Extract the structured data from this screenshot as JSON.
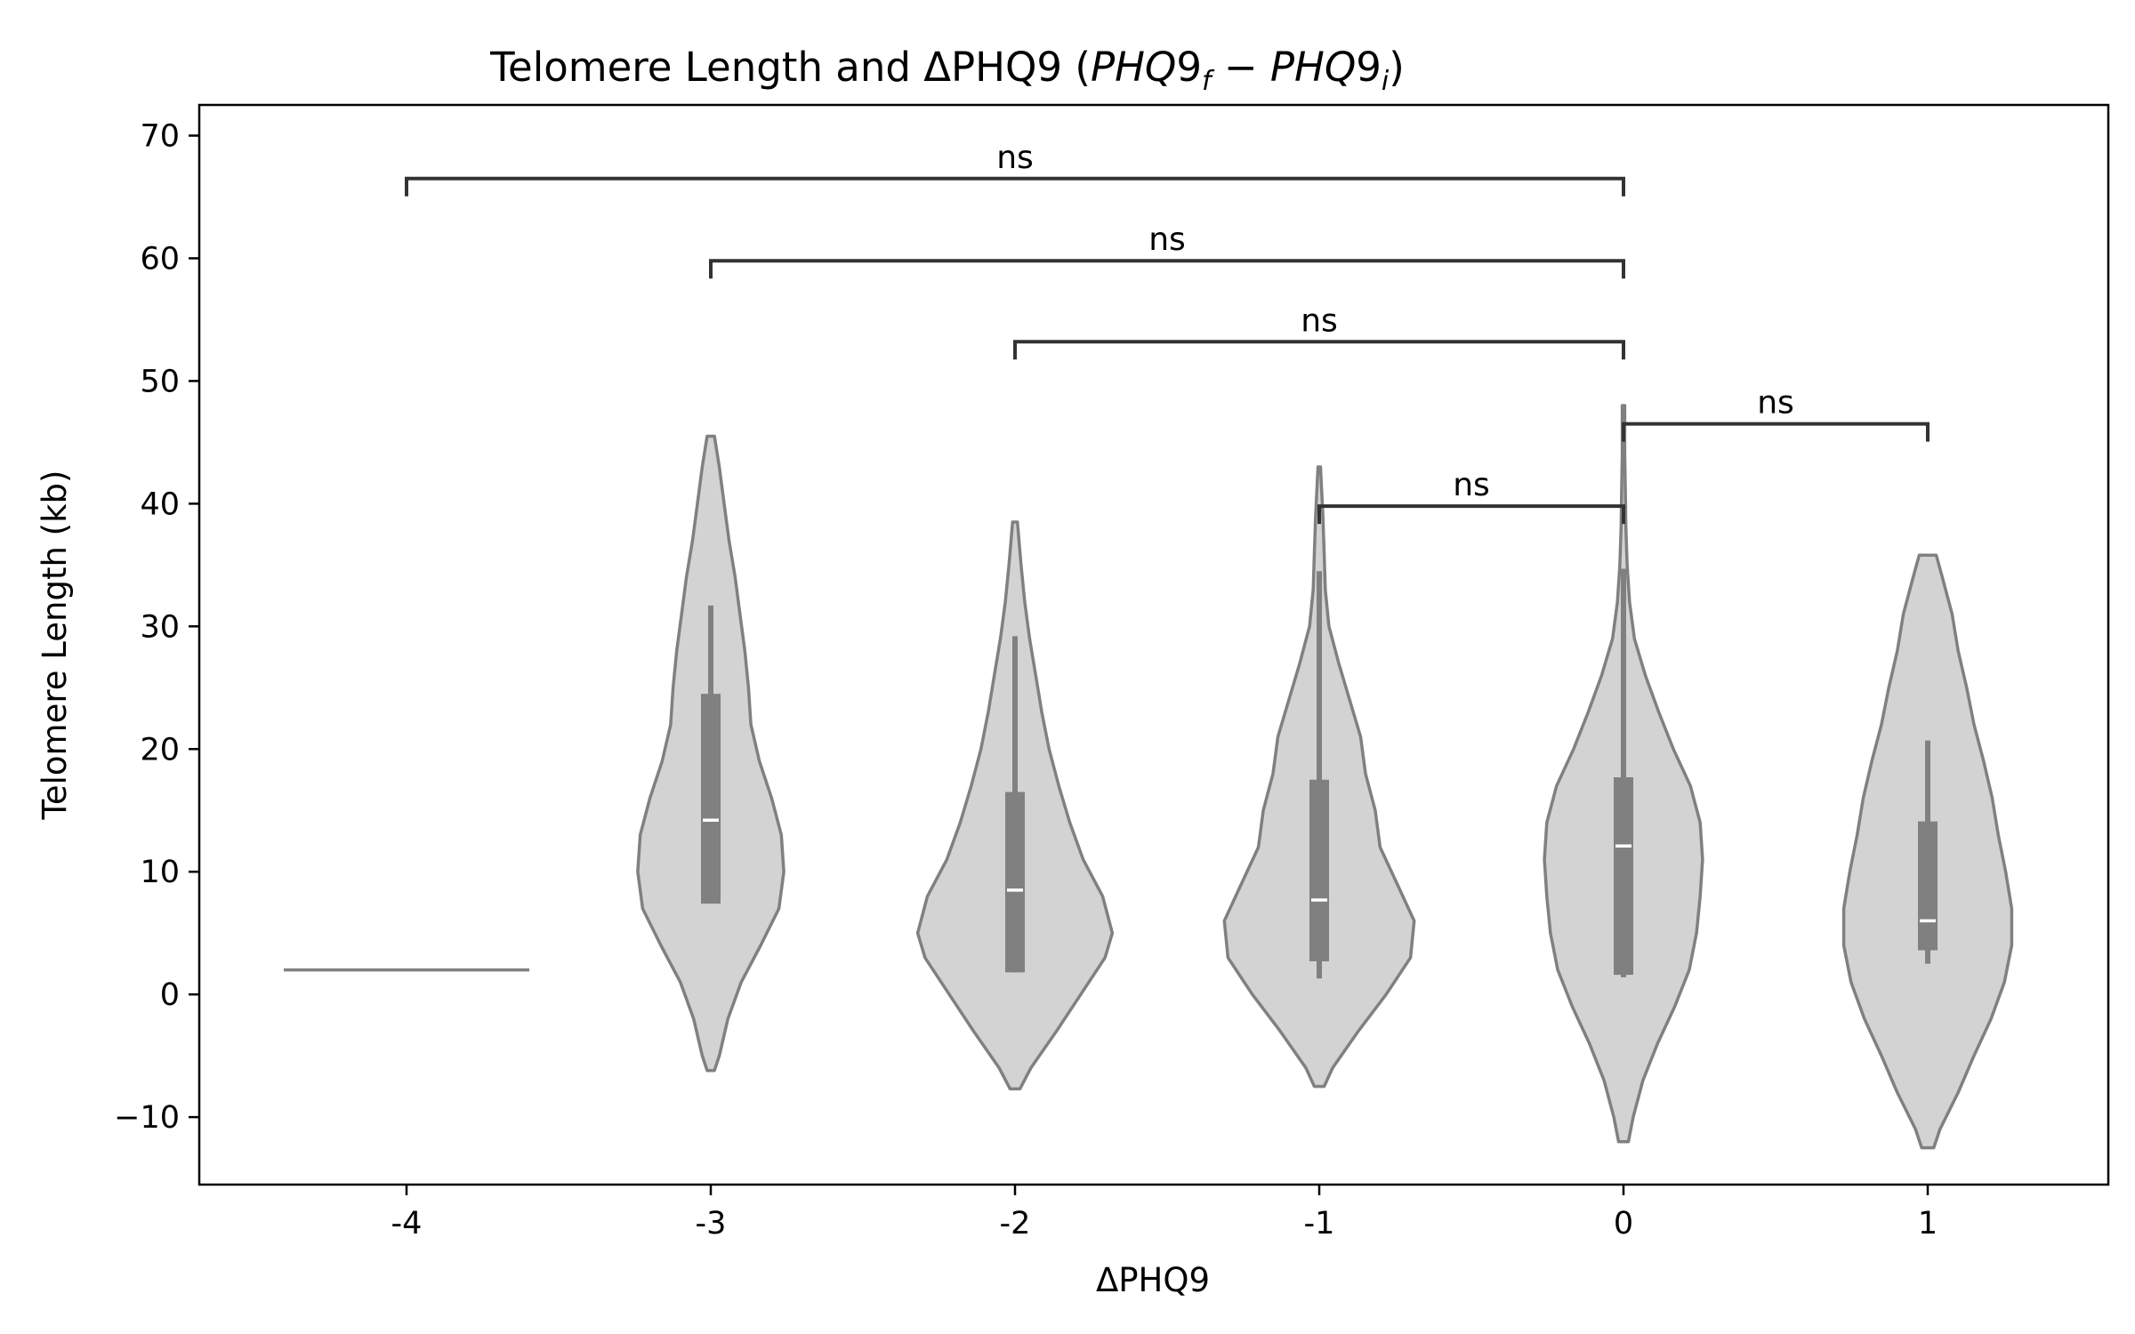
{
  "chart_data": {
    "type": "violin",
    "title": "Telomere Length and ΔPHQ9",
    "title_math": {
      "open": " (",
      "term1": "PHQ",
      "term1_digit": "9",
      "term1_sub": "f",
      "minus": " − ",
      "term2": "PHQ",
      "term2_digit": "9",
      "term2_sub": "i",
      "close": ")"
    },
    "xlabel": "ΔPHQ9",
    "ylabel": "Telomere Length (kb)",
    "ylim": [
      -15.5,
      72.5
    ],
    "yticks": [
      -10,
      0,
      10,
      20,
      30,
      40,
      50,
      60,
      70
    ],
    "ytick_labels": [
      "−10",
      "0",
      "10",
      "20",
      "30",
      "40",
      "50",
      "60",
      "70"
    ],
    "categories": [
      "-4",
      "-3",
      "-2",
      "-1",
      "0",
      "1"
    ],
    "grid": false,
    "colors": {
      "violin_fill": "#d3d3d3",
      "violin_edge": "#808080",
      "box": "#808080",
      "median": "#ffffff",
      "bracket": "#333333"
    },
    "violins": [
      {
        "category": "-4",
        "single_value": 2.0,
        "median": null,
        "q1": null,
        "q3": null,
        "whisker_low": null,
        "whisker_high": null,
        "profile": []
      },
      {
        "category": "-3",
        "median": 14.2,
        "q1": 7.4,
        "q3": 24.5,
        "whisker_low": 7.4,
        "whisker_high": 31.7,
        "profile": [
          [
            -6.2,
            0.03
          ],
          [
            -5,
            0.07
          ],
          [
            -2,
            0.14
          ],
          [
            1,
            0.25
          ],
          [
            4,
            0.41
          ],
          [
            7,
            0.56
          ],
          [
            10,
            0.6
          ],
          [
            13,
            0.58
          ],
          [
            16,
            0.5
          ],
          [
            19,
            0.4
          ],
          [
            22,
            0.33
          ],
          [
            25,
            0.31
          ],
          [
            28,
            0.28
          ],
          [
            31,
            0.24
          ],
          [
            34,
            0.2
          ],
          [
            37,
            0.15
          ],
          [
            40,
            0.11
          ],
          [
            43,
            0.07
          ],
          [
            45.5,
            0.03
          ]
        ]
      },
      {
        "category": "-2",
        "median": 8.5,
        "q1": 1.8,
        "q3": 16.5,
        "whisker_low": 1.8,
        "whisker_high": 29.2,
        "profile": [
          [
            -7.7,
            0.04
          ],
          [
            -6,
            0.13
          ],
          [
            -3,
            0.34
          ],
          [
            0,
            0.54
          ],
          [
            3,
            0.74
          ],
          [
            5,
            0.8
          ],
          [
            8,
            0.72
          ],
          [
            11,
            0.56
          ],
          [
            14,
            0.45
          ],
          [
            17,
            0.36
          ],
          [
            20,
            0.28
          ],
          [
            23,
            0.22
          ],
          [
            26,
            0.17
          ],
          [
            29,
            0.12
          ],
          [
            32,
            0.08
          ],
          [
            35,
            0.05
          ],
          [
            38.5,
            0.02
          ]
        ]
      },
      {
        "category": "-1",
        "median": 7.7,
        "q1": 2.7,
        "q3": 17.5,
        "whisker_low": 1.3,
        "whisker_high": 34.5,
        "profile": [
          [
            -7.5,
            0.04
          ],
          [
            -6,
            0.11
          ],
          [
            -3,
            0.32
          ],
          [
            0,
            0.55
          ],
          [
            3,
            0.75
          ],
          [
            6,
            0.78
          ],
          [
            9,
            0.64
          ],
          [
            12,
            0.5
          ],
          [
            15,
            0.46
          ],
          [
            18,
            0.38
          ],
          [
            21,
            0.34
          ],
          [
            24,
            0.25
          ],
          [
            27,
            0.16
          ],
          [
            30,
            0.08
          ],
          [
            33,
            0.05
          ],
          [
            36,
            0.04
          ],
          [
            39,
            0.03
          ],
          [
            43,
            0.01
          ]
        ]
      },
      {
        "category": "0",
        "median": 12.1,
        "q1": 1.6,
        "q3": 17.7,
        "whisker_low": 1.4,
        "whisker_high": 34.7,
        "profile": [
          [
            -12,
            0.04
          ],
          [
            -10,
            0.08
          ],
          [
            -7,
            0.16
          ],
          [
            -4,
            0.28
          ],
          [
            -1,
            0.42
          ],
          [
            2,
            0.54
          ],
          [
            5,
            0.6
          ],
          [
            8,
            0.63
          ],
          [
            11,
            0.65
          ],
          [
            14,
            0.63
          ],
          [
            17,
            0.55
          ],
          [
            20,
            0.41
          ],
          [
            23,
            0.29
          ],
          [
            26,
            0.18
          ],
          [
            29,
            0.09
          ],
          [
            32,
            0.05
          ],
          [
            35,
            0.03
          ],
          [
            38,
            0.02
          ],
          [
            41,
            0.015
          ],
          [
            44,
            0.01
          ],
          [
            48,
            0.01
          ]
        ]
      },
      {
        "category": "1",
        "median": 6.0,
        "q1": 3.6,
        "q3": 14.1,
        "whisker_low": 2.5,
        "whisker_high": 20.7,
        "profile": [
          [
            -12.5,
            0.05
          ],
          [
            -11,
            0.1
          ],
          [
            -8,
            0.25
          ],
          [
            -5,
            0.38
          ],
          [
            -2,
            0.52
          ],
          [
            1,
            0.63
          ],
          [
            4,
            0.69
          ],
          [
            7,
            0.69
          ],
          [
            10,
            0.64
          ],
          [
            13,
            0.58
          ],
          [
            16,
            0.53
          ],
          [
            19,
            0.46
          ],
          [
            22,
            0.38
          ],
          [
            25,
            0.32
          ],
          [
            28,
            0.25
          ],
          [
            31,
            0.2
          ],
          [
            34,
            0.12
          ],
          [
            35.8,
            0.07
          ]
        ]
      }
    ],
    "annotations": [
      {
        "from": "-4",
        "to": "0",
        "y": 66.5,
        "label": "ns"
      },
      {
        "from": "-3",
        "to": "0",
        "y": 59.8,
        "label": "ns"
      },
      {
        "from": "-2",
        "to": "0",
        "y": 53.2,
        "label": "ns"
      },
      {
        "from": "0",
        "to": "1",
        "y": 46.5,
        "label": "ns"
      },
      {
        "from": "-1",
        "to": "0",
        "y": 39.8,
        "label": "ns"
      }
    ]
  }
}
